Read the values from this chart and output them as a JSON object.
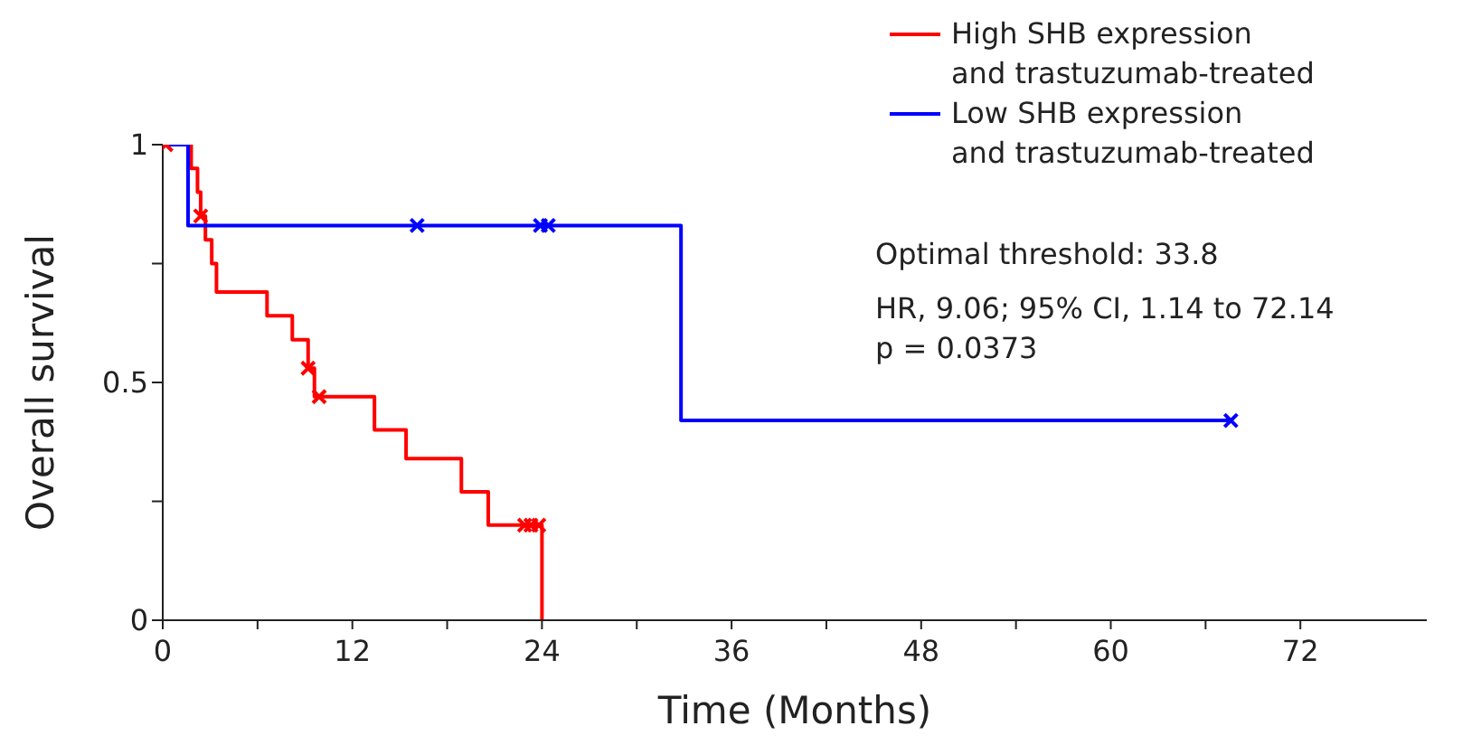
{
  "chart_data": {
    "type": "step",
    "xlabel": "Time (Months)",
    "ylabel": "Overall survival",
    "xlim": [
      0,
      80
    ],
    "ylim": [
      0,
      1
    ],
    "xticks": [
      0,
      {
        "value": 6,
        "label": null
      },
      12,
      {
        "value": 18,
        "label": null
      },
      24,
      {
        "value": 30,
        "label": null
      },
      36,
      {
        "value": 42,
        "label": null
      },
      48,
      {
        "value": 54,
        "label": null
      },
      60,
      {
        "value": 66,
        "label": null
      },
      72
    ],
    "yticks": [
      0,
      {
        "value": 0.25,
        "label": null
      },
      0.5,
      {
        "value": 0.75,
        "label": null
      },
      1
    ],
    "legend": "top right",
    "line_style": "solid",
    "series": [
      {
        "name": "High SHB expression\nand trastuzumab-treated",
        "marker": "none",
        "color": "#ff0000",
        "x": [
          0,
          1.8,
          2.2,
          2.4,
          2.7,
          3.1,
          3.4,
          6.6,
          8.2,
          9.2,
          9.6,
          13.4,
          15.4,
          18.9,
          20.6,
          24,
          24
        ],
        "values": [
          1,
          0.95,
          0.9,
          0.85,
          0.8,
          0.75,
          0.69,
          0.64,
          0.59,
          0.53,
          0.47,
          0.4,
          0.34,
          0.27,
          0.2,
          0.2,
          0
        ]
      },
      {
        "name": "Low SHB expression\nand trastuzumab-treated",
        "marker": "none",
        "color": "#0000ff",
        "x": [
          0,
          1.6,
          32.8,
          67.6
        ],
        "values": [
          1,
          0.83,
          0.42,
          0.42
        ]
      },
      {
        "type": "scatter",
        "marker": "cross",
        "color": "#ff0000",
        "x": [
          0.2,
          2.4,
          9.2,
          9.9,
          22.9,
          23.3,
          23.8
        ],
        "values": [
          1,
          0.85,
          0.53,
          0.47,
          0.2,
          0.2,
          0.2
        ]
      },
      {
        "type": "scatter",
        "marker": "cross",
        "color": "#0000ff",
        "x": [
          16.1,
          23.9,
          24.4,
          67.6
        ],
        "values": [
          0.83,
          0.83,
          0.83,
          0.42
        ]
      }
    ],
    "annotations": [
      "Optimal threshold: 33.8",
      "HR, 9.06; 95% CI, 1.14 to 72.14\np = 0.0373"
    ]
  }
}
